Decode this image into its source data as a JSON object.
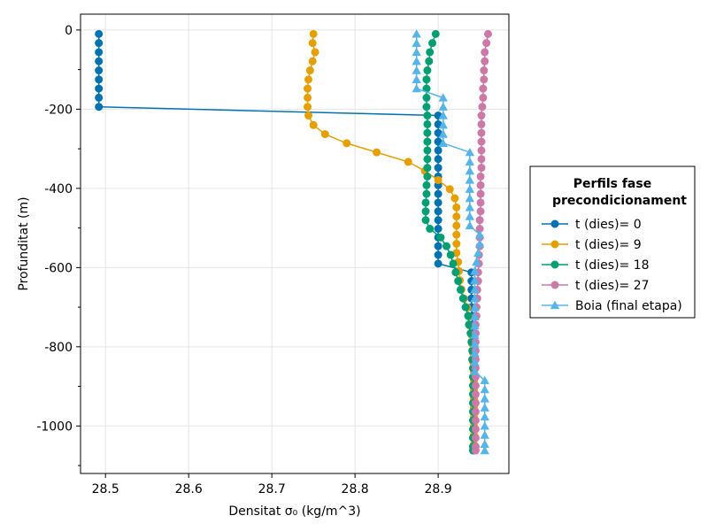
{
  "chart_data": {
    "type": "line",
    "xlabel": "Densitat σ₀ (kg/m^3)",
    "ylabel": "Profunditat (m)",
    "xlim": [
      28.47,
      28.985
    ],
    "ylim": [
      -1120,
      40
    ],
    "xticks": [
      28.5,
      28.6,
      28.7,
      28.8,
      28.9
    ],
    "xtick_labels": [
      "28.5",
      "28.6",
      "28.7",
      "28.8",
      "28.9"
    ],
    "yticks": [
      0,
      -200,
      -400,
      -600,
      -800,
      -1000
    ],
    "ytick_labels": [
      "0",
      "-200",
      "-400",
      "-600",
      "-800",
      "-1000"
    ],
    "yminor_ticks": [
      -100,
      -300,
      -500,
      -700,
      -900,
      -1100
    ],
    "grid": true,
    "legend_position": "right",
    "legend": {
      "title_line1": "Perfils fase",
      "title_line2": "precondicionament"
    },
    "series": [
      {
        "name": "t (dies)= 0",
        "color": "#0072b2",
        "marker": "circle",
        "points": [
          [
            28.492,
            -10
          ],
          [
            28.492,
            -33
          ],
          [
            28.492,
            -56
          ],
          [
            28.492,
            -79
          ],
          [
            28.492,
            -102
          ],
          [
            28.492,
            -125
          ],
          [
            28.492,
            -148
          ],
          [
            28.492,
            -171
          ],
          [
            28.492,
            -194
          ],
          [
            28.9,
            -216
          ],
          [
            28.9,
            -238
          ],
          [
            28.9,
            -260
          ],
          [
            28.9,
            -282
          ],
          [
            28.9,
            -304
          ],
          [
            28.9,
            -326
          ],
          [
            28.9,
            -348
          ],
          [
            28.9,
            -370
          ],
          [
            28.9,
            -392
          ],
          [
            28.9,
            -414
          ],
          [
            28.9,
            -436
          ],
          [
            28.9,
            -458
          ],
          [
            28.9,
            -480
          ],
          [
            28.9,
            -502
          ],
          [
            28.9,
            -524
          ],
          [
            28.9,
            -546
          ],
          [
            28.9,
            -568
          ],
          [
            28.9,
            -590
          ],
          [
            28.94,
            -612
          ],
          [
            28.94,
            -634
          ],
          [
            28.94,
            -656
          ],
          [
            28.94,
            -678
          ],
          [
            28.94,
            -700
          ],
          [
            28.941,
            -722
          ],
          [
            28.941,
            -744
          ],
          [
            28.941,
            -766
          ],
          [
            28.941,
            -788
          ],
          [
            28.942,
            -810
          ],
          [
            28.942,
            -832
          ],
          [
            28.942,
            -854
          ],
          [
            28.942,
            -876
          ],
          [
            28.942,
            -898
          ],
          [
            28.942,
            -920
          ],
          [
            28.942,
            -942
          ],
          [
            28.942,
            -964
          ],
          [
            28.942,
            -986
          ],
          [
            28.942,
            -1008
          ],
          [
            28.942,
            -1030
          ],
          [
            28.942,
            -1052
          ],
          [
            28.942,
            -1062
          ]
        ]
      },
      {
        "name": "t (dies)= 9",
        "color": "#e69f00",
        "marker": "circle",
        "points": [
          [
            28.75,
            -10
          ],
          [
            28.749,
            -33
          ],
          [
            28.752,
            -56
          ],
          [
            28.749,
            -79
          ],
          [
            28.746,
            -102
          ],
          [
            28.744,
            -125
          ],
          [
            28.743,
            -148
          ],
          [
            28.743,
            -171
          ],
          [
            28.743,
            -194
          ],
          [
            28.744,
            -216
          ],
          [
            28.75,
            -240
          ],
          [
            28.764,
            -263
          ],
          [
            28.79,
            -286
          ],
          [
            28.826,
            -309
          ],
          [
            28.864,
            -333
          ],
          [
            28.884,
            -356
          ],
          [
            28.9,
            -379
          ],
          [
            28.914,
            -402
          ],
          [
            28.92,
            -425
          ],
          [
            28.922,
            -448
          ],
          [
            28.922,
            -471
          ],
          [
            28.922,
            -494
          ],
          [
            28.922,
            -517
          ],
          [
            28.922,
            -540
          ],
          [
            28.922,
            -563
          ],
          [
            28.924,
            -586
          ],
          [
            28.925,
            -609
          ],
          [
            28.926,
            -632
          ],
          [
            28.928,
            -655
          ],
          [
            28.931,
            -678
          ],
          [
            28.935,
            -701
          ],
          [
            28.937,
            -724
          ],
          [
            28.938,
            -747
          ],
          [
            28.94,
            -770
          ],
          [
            28.941,
            -793
          ],
          [
            28.942,
            -816
          ],
          [
            28.942,
            -839
          ],
          [
            28.943,
            -862
          ],
          [
            28.943,
            -885
          ],
          [
            28.943,
            -908
          ],
          [
            28.943,
            -931
          ],
          [
            28.943,
            -954
          ],
          [
            28.943,
            -977
          ],
          [
            28.943,
            -1000
          ],
          [
            28.943,
            -1023
          ],
          [
            28.943,
            -1046
          ],
          [
            28.943,
            -1062
          ]
        ]
      },
      {
        "name": "t (dies)= 18",
        "color": "#009e73",
        "marker": "circle",
        "points": [
          [
            28.897,
            -10
          ],
          [
            28.893,
            -33
          ],
          [
            28.89,
            -56
          ],
          [
            28.889,
            -79
          ],
          [
            28.887,
            -102
          ],
          [
            28.886,
            -125
          ],
          [
            28.886,
            -148
          ],
          [
            28.886,
            -171
          ],
          [
            28.886,
            -194
          ],
          [
            28.887,
            -216
          ],
          [
            28.887,
            -238
          ],
          [
            28.887,
            -260
          ],
          [
            28.887,
            -282
          ],
          [
            28.887,
            -304
          ],
          [
            28.887,
            -326
          ],
          [
            28.887,
            -348
          ],
          [
            28.887,
            -370
          ],
          [
            28.886,
            -392
          ],
          [
            28.886,
            -414
          ],
          [
            28.885,
            -436
          ],
          [
            28.885,
            -458
          ],
          [
            28.885,
            -480
          ],
          [
            28.89,
            -502
          ],
          [
            28.903,
            -524
          ],
          [
            28.91,
            -546
          ],
          [
            28.915,
            -568
          ],
          [
            28.918,
            -590
          ],
          [
            28.921,
            -612
          ],
          [
            28.924,
            -634
          ],
          [
            28.927,
            -656
          ],
          [
            28.93,
            -678
          ],
          [
            28.933,
            -700
          ],
          [
            28.936,
            -722
          ],
          [
            28.937,
            -744
          ],
          [
            28.939,
            -766
          ],
          [
            28.94,
            -788
          ],
          [
            28.941,
            -810
          ],
          [
            28.941,
            -832
          ],
          [
            28.942,
            -854
          ],
          [
            28.942,
            -876
          ],
          [
            28.942,
            -898
          ],
          [
            28.942,
            -920
          ],
          [
            28.942,
            -942
          ],
          [
            28.942,
            -964
          ],
          [
            28.942,
            -986
          ],
          [
            28.942,
            -1008
          ],
          [
            28.942,
            -1030
          ],
          [
            28.942,
            -1052
          ],
          [
            28.942,
            -1062
          ]
        ]
      },
      {
        "name": "t (dies)= 27",
        "color": "#cc79a7",
        "marker": "circle",
        "points": [
          [
            28.96,
            -10
          ],
          [
            28.958,
            -33
          ],
          [
            28.956,
            -56
          ],
          [
            28.956,
            -79
          ],
          [
            28.955,
            -102
          ],
          [
            28.955,
            -125
          ],
          [
            28.954,
            -148
          ],
          [
            28.954,
            -171
          ],
          [
            28.953,
            -194
          ],
          [
            28.952,
            -216
          ],
          [
            28.952,
            -238
          ],
          [
            28.952,
            -260
          ],
          [
            28.952,
            -282
          ],
          [
            28.952,
            -304
          ],
          [
            28.952,
            -326
          ],
          [
            28.952,
            -348
          ],
          [
            28.951,
            -370
          ],
          [
            28.951,
            -392
          ],
          [
            28.951,
            -414
          ],
          [
            28.951,
            -436
          ],
          [
            28.951,
            -458
          ],
          [
            28.95,
            -480
          ],
          [
            28.95,
            -502
          ],
          [
            28.95,
            -524
          ],
          [
            28.95,
            -546
          ],
          [
            28.949,
            -568
          ],
          [
            28.949,
            -590
          ],
          [
            28.948,
            -612
          ],
          [
            28.948,
            -634
          ],
          [
            28.947,
            -656
          ],
          [
            28.947,
            -678
          ],
          [
            28.946,
            -700
          ],
          [
            28.946,
            -722
          ],
          [
            28.945,
            -744
          ],
          [
            28.945,
            -766
          ],
          [
            28.945,
            -788
          ],
          [
            28.945,
            -810
          ],
          [
            28.945,
            -832
          ],
          [
            28.945,
            -854
          ],
          [
            28.945,
            -876
          ],
          [
            28.945,
            -898
          ],
          [
            28.945,
            -920
          ],
          [
            28.945,
            -942
          ],
          [
            28.945,
            -964
          ],
          [
            28.945,
            -986
          ],
          [
            28.945,
            -1008
          ],
          [
            28.945,
            -1030
          ],
          [
            28.945,
            -1052
          ],
          [
            28.945,
            -1062
          ]
        ]
      },
      {
        "name": "Boia (final etapa)",
        "color": "#56b4e9",
        "marker": "triangle",
        "points": [
          [
            28.874,
            -10
          ],
          [
            28.874,
            -33
          ],
          [
            28.874,
            -56
          ],
          [
            28.874,
            -79
          ],
          [
            28.874,
            -102
          ],
          [
            28.874,
            -125
          ],
          [
            28.874,
            -148
          ],
          [
            28.906,
            -171
          ],
          [
            28.906,
            -194
          ],
          [
            28.906,
            -216
          ],
          [
            28.906,
            -240
          ],
          [
            28.906,
            -263
          ],
          [
            28.906,
            -286
          ],
          [
            28.938,
            -309
          ],
          [
            28.938,
            -333
          ],
          [
            28.938,
            -356
          ],
          [
            28.938,
            -379
          ],
          [
            28.938,
            -402
          ],
          [
            28.938,
            -425
          ],
          [
            28.938,
            -448
          ],
          [
            28.938,
            -471
          ],
          [
            28.938,
            -494
          ],
          [
            28.95,
            -517
          ],
          [
            28.95,
            -540
          ],
          [
            28.948,
            -563
          ],
          [
            28.946,
            -586
          ],
          [
            28.944,
            -609
          ],
          [
            28.944,
            -632
          ],
          [
            28.944,
            -655
          ],
          [
            28.944,
            -678
          ],
          [
            28.944,
            -701
          ],
          [
            28.944,
            -724
          ],
          [
            28.944,
            -747
          ],
          [
            28.944,
            -770
          ],
          [
            28.944,
            -793
          ],
          [
            28.944,
            -816
          ],
          [
            28.944,
            -839
          ],
          [
            28.944,
            -862
          ],
          [
            28.956,
            -885
          ],
          [
            28.956,
            -908
          ],
          [
            28.956,
            -931
          ],
          [
            28.956,
            -954
          ],
          [
            28.956,
            -977
          ],
          [
            28.956,
            -1000
          ],
          [
            28.956,
            -1023
          ],
          [
            28.956,
            -1046
          ],
          [
            28.956,
            -1062
          ]
        ]
      }
    ]
  }
}
